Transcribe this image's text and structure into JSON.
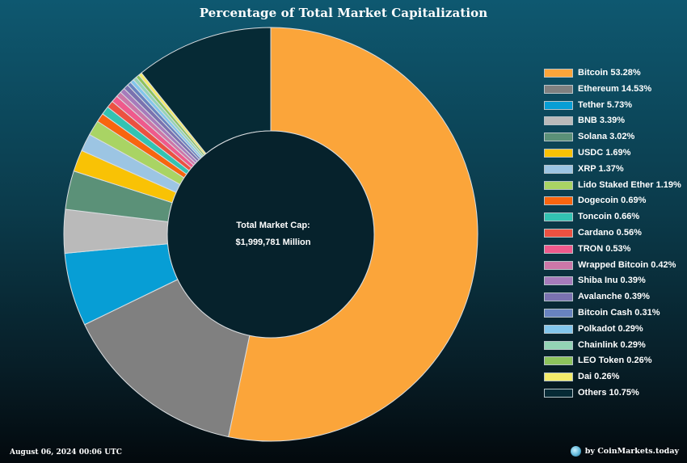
{
  "chart_data": {
    "type": "pie",
    "title": "Percentage of Total Market Capitalization",
    "center_label": {
      "title": "Total Market Cap:",
      "value": "$1,999,781 Million"
    },
    "series": [
      {
        "name": "Bitcoin",
        "value": 53.28,
        "label": "Bitcoin 53.28%",
        "color": "#fba53a"
      },
      {
        "name": "Ethereum",
        "value": 14.53,
        "label": "Ethereum 14.53%",
        "color": "#808080"
      },
      {
        "name": "Tether",
        "value": 5.73,
        "label": "Tether 5.73%",
        "color": "#079ed5"
      },
      {
        "name": "BNB",
        "value": 3.39,
        "label": "BNB 3.39%",
        "color": "#bababa"
      },
      {
        "name": "Solana",
        "value": 3.02,
        "label": "Solana 3.02%",
        "color": "#5b9178"
      },
      {
        "name": "USDC",
        "value": 1.69,
        "label": "USDC 1.69%",
        "color": "#f9c205"
      },
      {
        "name": "XRP",
        "value": 1.37,
        "label": "XRP 1.37%",
        "color": "#9cc5e3"
      },
      {
        "name": "Lido Staked Ether",
        "value": 1.19,
        "label": "Lido Staked Ether 1.19%",
        "color": "#a9d464"
      },
      {
        "name": "Dogecoin",
        "value": 0.69,
        "label": "Dogecoin 0.69%",
        "color": "#f8650f"
      },
      {
        "name": "Toncoin",
        "value": 0.66,
        "label": "Toncoin 0.66%",
        "color": "#32c3b2"
      },
      {
        "name": "Cardano",
        "value": 0.56,
        "label": "Cardano 0.56%",
        "color": "#ec5141"
      },
      {
        "name": "TRON",
        "value": 0.53,
        "label": "TRON 0.53%",
        "color": "#ef5a8c"
      },
      {
        "name": "Wrapped Bitcoin",
        "value": 0.42,
        "label": "Wrapped Bitcoin 0.42%",
        "color": "#cc77a8"
      },
      {
        "name": "Shiba Inu",
        "value": 0.39,
        "label": "Shiba Inu 0.39%",
        "color": "#a67bbb"
      },
      {
        "name": "Avalanche",
        "value": 0.39,
        "label": "Avalanche 0.39%",
        "color": "#7a72b0"
      },
      {
        "name": "Bitcoin Cash",
        "value": 0.31,
        "label": "Bitcoin Cash 0.31%",
        "color": "#6883c0"
      },
      {
        "name": "Polkadot",
        "value": 0.29,
        "label": "Polkadot 0.29%",
        "color": "#82c6ec"
      },
      {
        "name": "Chainlink",
        "value": 0.29,
        "label": "Chainlink 0.29%",
        "color": "#93d3b5"
      },
      {
        "name": "LEO Token",
        "value": 0.26,
        "label": "LEO Token 0.26%",
        "color": "#8dc35c"
      },
      {
        "name": "Dai",
        "value": 0.26,
        "label": "Dai 0.26%",
        "color": "#f4eb6a"
      },
      {
        "name": "Others",
        "value": 10.75,
        "label": "Others 10.75%",
        "color": "#062a35"
      }
    ],
    "legend_placement": "right"
  },
  "footer": {
    "date": "August 06, 2024 00:06 UTC",
    "credit": "by CoinMarkets.today",
    "credit_icon": "globe-icon"
  }
}
